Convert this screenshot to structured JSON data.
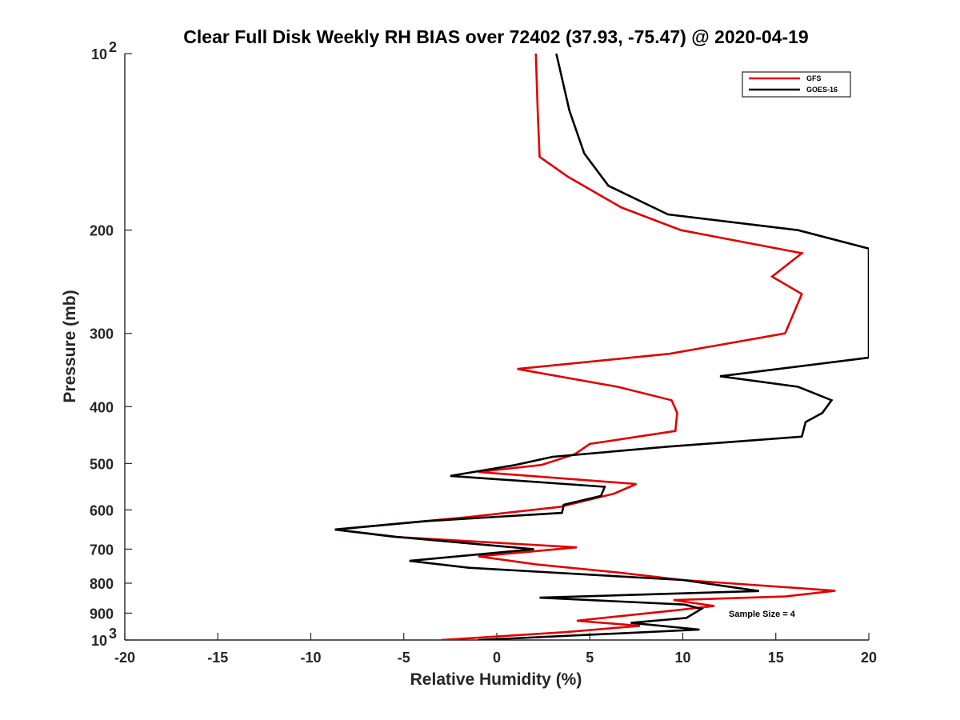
{
  "chart_data": {
    "type": "line",
    "title": "Clear Full Disk Weekly RH BIAS over 72402 (37.93, -75.47) @ 2020-04-19",
    "xlabel": "Relative Humidity (%)",
    "ylabel": "Pressure (mb)",
    "xlim": [
      -20,
      20
    ],
    "ylim": [
      100,
      1000
    ],
    "yscale": "log",
    "yreversed": true,
    "x_ticks": [
      -20,
      -15,
      -10,
      -5,
      0,
      5,
      10,
      15,
      20
    ],
    "x_tick_labels": [
      "-20",
      "-15",
      "-10",
      "-5",
      "0",
      "5",
      "10",
      "15",
      "20"
    ],
    "y_ticks": [
      200,
      300,
      400,
      500,
      600,
      700,
      800,
      900
    ],
    "y_tick_labels": [
      "200",
      "300",
      "400",
      "500",
      "600",
      "700",
      "800",
      "900"
    ],
    "y_top_label": {
      "base": "10",
      "exp": "2"
    },
    "y_bottom_label": {
      "base": "10",
      "exp": "3"
    },
    "legend_position": "top-right",
    "annotation": "Sample Size = 4",
    "series": [
      {
        "name": "GFS",
        "color": "#e00000",
        "points": [
          [
            2.1,
            100
          ],
          [
            2.2,
            125
          ],
          [
            2.3,
            150
          ],
          [
            3.8,
            162
          ],
          [
            6.7,
            183
          ],
          [
            9.9,
            200
          ],
          [
            16.4,
            219
          ],
          [
            14.8,
            240
          ],
          [
            16.4,
            257
          ],
          [
            15.5,
            300
          ],
          [
            9.3,
            325
          ],
          [
            1.1,
            345
          ],
          [
            6.5,
            370
          ],
          [
            9.4,
            390
          ],
          [
            9.7,
            410
          ],
          [
            9.6,
            440
          ],
          [
            5.0,
            463
          ],
          [
            4.2,
            482
          ],
          [
            2.4,
            503
          ],
          [
            -1.0,
            517
          ],
          [
            7.5,
            542
          ],
          [
            6.3,
            563
          ],
          [
            3.4,
            593
          ],
          [
            -1.5,
            617
          ],
          [
            -8.7,
            648
          ],
          [
            -5.5,
            667
          ],
          [
            4.3,
            695
          ],
          [
            2.2,
            705
          ],
          [
            -1.0,
            720
          ],
          [
            2.1,
            743
          ],
          [
            6.5,
            767
          ],
          [
            10.0,
            790
          ],
          [
            18.2,
            824
          ],
          [
            15.5,
            843
          ],
          [
            9.5,
            855
          ],
          [
            11.7,
            875
          ],
          [
            9.6,
            890
          ],
          [
            4.3,
            927
          ],
          [
            7.7,
            946
          ],
          [
            3.6,
            970
          ],
          [
            -3.0,
            1000
          ]
        ]
      },
      {
        "name": "GOES-16",
        "color": "#000000",
        "points": [
          [
            3.2,
            100
          ],
          [
            3.9,
            125
          ],
          [
            4.7,
            148
          ],
          [
            6.0,
            168
          ],
          [
            9.2,
            188
          ],
          [
            16.2,
            200
          ],
          [
            20.5,
            215
          ],
          [
            20.5,
            330
          ],
          [
            12.0,
            355
          ],
          [
            16.2,
            370
          ],
          [
            18.0,
            390
          ],
          [
            17.5,
            410
          ],
          [
            16.6,
            425
          ],
          [
            16.4,
            450
          ],
          [
            9.2,
            468
          ],
          [
            3.0,
            487
          ],
          [
            1.0,
            503
          ],
          [
            -2.5,
            525
          ],
          [
            5.8,
            548
          ],
          [
            5.6,
            568
          ],
          [
            3.6,
            588
          ],
          [
            3.5,
            607
          ],
          [
            -3.8,
            627
          ],
          [
            -8.7,
            648
          ],
          [
            -5.4,
            667
          ],
          [
            2.0,
            700
          ],
          [
            -4.7,
            733
          ],
          [
            -1.5,
            753
          ],
          [
            10.0,
            790
          ],
          [
            14.1,
            825
          ],
          [
            2.3,
            847
          ],
          [
            10.1,
            870
          ],
          [
            11.0,
            885
          ],
          [
            10.2,
            917
          ],
          [
            7.2,
            935
          ],
          [
            10.9,
            960
          ],
          [
            -1.0,
            1000
          ]
        ]
      }
    ]
  }
}
